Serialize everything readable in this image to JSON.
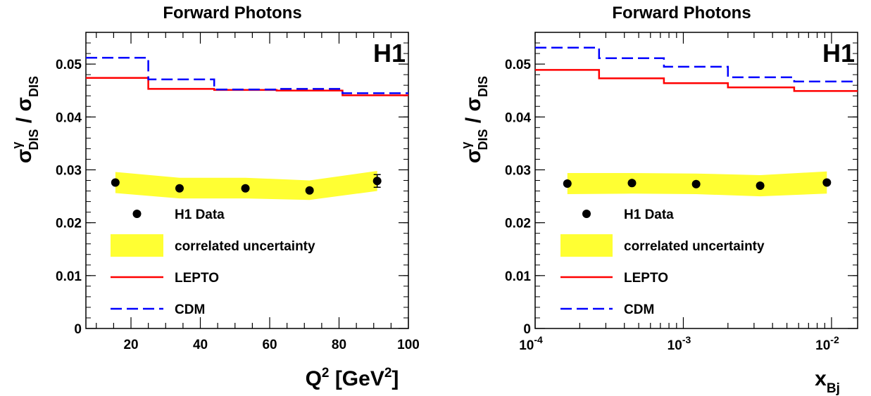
{
  "chart_data": [
    {
      "type": "line",
      "title": "Forward Photons",
      "stamp": "H1",
      "xlabel": "Q² [GeV²]",
      "xlabel_parts": {
        "base": "Q",
        "sup1": "2",
        "mid": " [GeV",
        "sup2": "2",
        "end": "]"
      },
      "ylabel_parts": {
        "sigma": "σ",
        "sup": "γ",
        "sub": "DIS",
        "slash": " / ",
        "sigma2": "σ",
        "sub2": "DIS"
      },
      "xscale": "linear",
      "xlim": [
        7,
        100
      ],
      "ylim": [
        0,
        0.056
      ],
      "x_ticks": [
        20,
        40,
        60,
        80,
        100
      ],
      "x_tick_labels": [
        "20",
        "40",
        "60",
        "80",
        "100"
      ],
      "y_ticks": [
        0,
        0.01,
        0.02,
        0.03,
        0.04,
        0.05
      ],
      "y_tick_labels": [
        "0",
        "0.01",
        "0.02",
        "0.03",
        "0.04",
        "0.05"
      ],
      "bin_edges": [
        7,
        25,
        44,
        62,
        81,
        100
      ],
      "series": [
        {
          "name": "H1 Data",
          "kind": "points",
          "color": "#000000",
          "x": [
            15.5,
            34,
            53,
            71.5,
            91
          ],
          "y": [
            0.0276,
            0.0265,
            0.0265,
            0.0261,
            0.0279
          ],
          "err": [
            0.0004,
            0.0004,
            0.0004,
            0.0004,
            0.0012
          ]
        },
        {
          "name": "correlated uncertainty",
          "kind": "band",
          "color": "#ffff33",
          "x": [
            15.5,
            34,
            53,
            71.5,
            91
          ],
          "low": [
            0.0256,
            0.0246,
            0.0246,
            0.0243,
            0.026
          ],
          "high": [
            0.0296,
            0.0285,
            0.0285,
            0.028,
            0.0298
          ]
        },
        {
          "name": "LEPTO",
          "kind": "step",
          "color": "#ff0000",
          "values": [
            0.0474,
            0.0453,
            0.0451,
            0.045,
            0.0441
          ]
        },
        {
          "name": "CDM",
          "kind": "step",
          "color": "#0000ff",
          "values": [
            0.0512,
            0.0471,
            0.0452,
            0.0453,
            0.0445
          ]
        }
      ],
      "legend": [
        {
          "label": "H1 Data",
          "kind": "points",
          "color": "#000000"
        },
        {
          "label": "correlated uncertainty",
          "kind": "band",
          "color": "#ffff33"
        },
        {
          "label": "LEPTO",
          "kind": "step",
          "color": "#ff0000"
        },
        {
          "label": "CDM",
          "kind": "step",
          "color": "#0000ff"
        }
      ]
    },
    {
      "type": "line",
      "title": "Forward Photons",
      "stamp": "H1",
      "xlabel": "x_Bj",
      "xlabel_parts": {
        "base": "x",
        "sub": "Bj"
      },
      "ylabel_parts": {
        "sigma": "σ",
        "sup": "γ",
        "sub": "DIS",
        "slash": " / ",
        "sigma2": "σ",
        "sub2": "DIS"
      },
      "xscale": "log",
      "xlim": [
        0.0001,
        0.015
      ],
      "ylim": [
        0,
        0.056
      ],
      "x_ticks": [
        0.0001,
        0.001,
        0.01
      ],
      "x_tick_labels": [
        {
          "base": "10",
          "exp": "-4"
        },
        {
          "base": "10",
          "exp": "-3"
        },
        {
          "base": "10",
          "exp": "-2"
        }
      ],
      "y_ticks": [
        0,
        0.01,
        0.02,
        0.03,
        0.04,
        0.05
      ],
      "y_tick_labels": [
        "0",
        "0.01",
        "0.02",
        "0.03",
        "0.04",
        "0.05"
      ],
      "bin_edges": [
        0.0001,
        0.00027,
        0.00074,
        0.002,
        0.0056,
        0.015
      ],
      "series": [
        {
          "name": "H1 Data",
          "kind": "points",
          "color": "#000000",
          "x": [
            0.000165,
            0.00045,
            0.00122,
            0.0033,
            0.0093
          ],
          "y": [
            0.0274,
            0.0275,
            0.0273,
            0.027,
            0.0276
          ],
          "err": [
            0.0004,
            0.0004,
            0.0004,
            0.0004,
            0.0004
          ]
        },
        {
          "name": "correlated uncertainty",
          "kind": "band",
          "color": "#ffff33",
          "x": [
            0.000165,
            0.00045,
            0.00122,
            0.0033,
            0.0093
          ],
          "low": [
            0.0254,
            0.0255,
            0.0254,
            0.025,
            0.0255
          ],
          "high": [
            0.0294,
            0.0294,
            0.0293,
            0.029,
            0.0297
          ]
        },
        {
          "name": "LEPTO",
          "kind": "step",
          "color": "#ff0000",
          "values": [
            0.0489,
            0.0473,
            0.0464,
            0.0456,
            0.0449
          ]
        },
        {
          "name": "CDM",
          "kind": "step",
          "color": "#0000ff",
          "values": [
            0.0531,
            0.0511,
            0.0495,
            0.0475,
            0.0467
          ]
        }
      ],
      "legend": [
        {
          "label": "H1 Data",
          "kind": "points",
          "color": "#000000"
        },
        {
          "label": "correlated uncertainty",
          "kind": "band",
          "color": "#ffff33"
        },
        {
          "label": "LEPTO",
          "kind": "step",
          "color": "#ff0000"
        },
        {
          "label": "CDM",
          "kind": "step",
          "color": "#0000ff"
        }
      ]
    }
  ]
}
